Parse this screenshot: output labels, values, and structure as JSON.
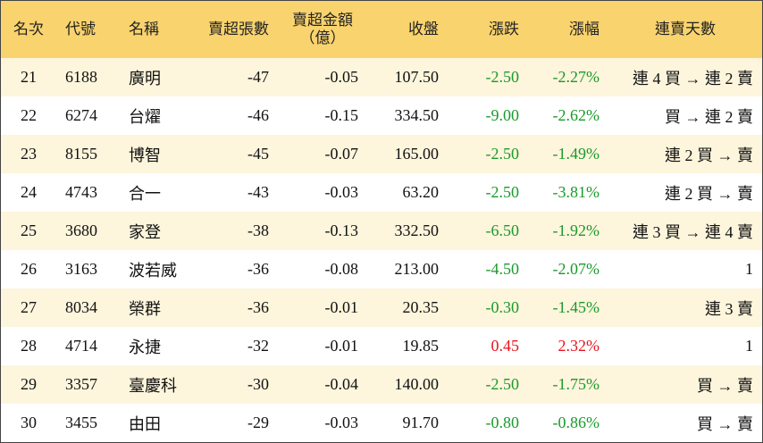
{
  "table": {
    "header": [
      "名次",
      "代號",
      "名稱",
      "賣超張數",
      [
        "賣超金額",
        "（億）"
      ],
      "收盤",
      "漲跌",
      "漲幅",
      "連賣天數"
    ],
    "rows": [
      [
        "21",
        "6188",
        "廣明",
        "-47",
        "-0.05",
        "107.50",
        "-2.50",
        "-2.27%",
        "連 4 買 → 連 2 賣"
      ],
      [
        "22",
        "6274",
        "台燿",
        "-46",
        "-0.15",
        "334.50",
        "-9.00",
        "-2.62%",
        "買 → 連 2 賣"
      ],
      [
        "23",
        "8155",
        "博智",
        "-45",
        "-0.07",
        "165.00",
        "-2.50",
        "-1.49%",
        "連 2 買 → 賣"
      ],
      [
        "24",
        "4743",
        "合一",
        "-43",
        "-0.03",
        "63.20",
        "-2.50",
        "-3.81%",
        "連 2 買 → 賣"
      ],
      [
        "25",
        "3680",
        "家登",
        "-38",
        "-0.13",
        "332.50",
        "-6.50",
        "-1.92%",
        "連 3 買 → 連 4 賣"
      ],
      [
        "26",
        "3163",
        "波若威",
        "-36",
        "-0.08",
        "213.00",
        "-4.50",
        "-2.07%",
        "1"
      ],
      [
        "27",
        "8034",
        "榮群",
        "-36",
        "-0.01",
        "20.35",
        "-0.30",
        "-1.45%",
        "連 3 賣"
      ],
      [
        "28",
        "4714",
        "永捷",
        "-32",
        "-0.01",
        "19.85",
        "0.45",
        "2.32%",
        "1"
      ],
      [
        "29",
        "3357",
        "臺慶科",
        "-30",
        "-0.04",
        "140.00",
        "-2.50",
        "-1.75%",
        "買 → 賣"
      ],
      [
        "30",
        "3455",
        "由田",
        "-29",
        "-0.03",
        "91.70",
        "-0.80",
        "-0.86%",
        "買 → 賣"
      ]
    ],
    "up_color": "#e8141b",
    "down_color": "#1a9a2a"
  }
}
